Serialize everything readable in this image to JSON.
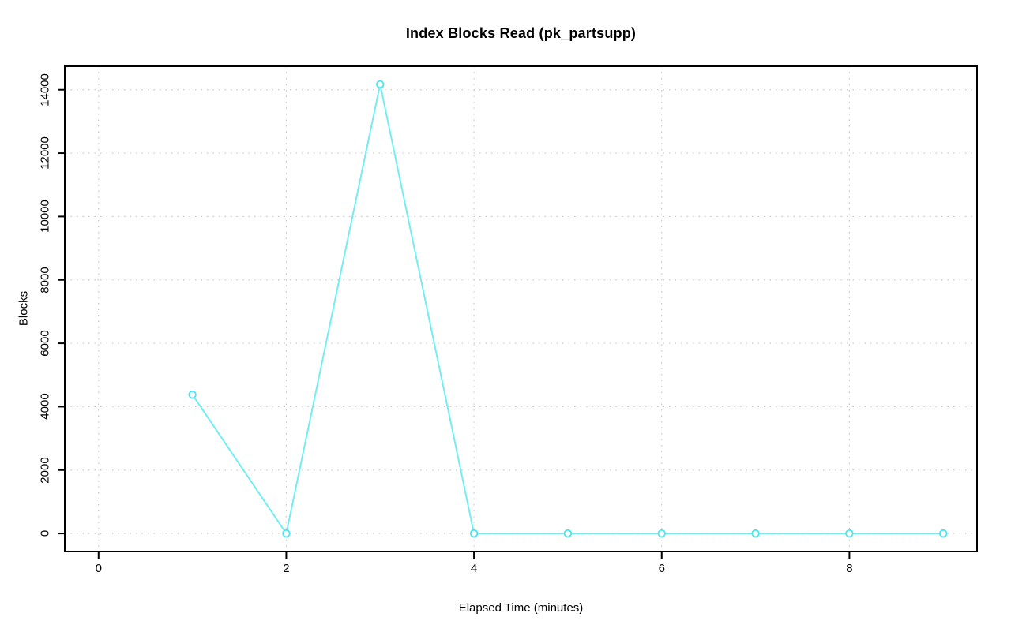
{
  "title": "Index Blocks Read (pk_partsupp)",
  "chart_data": {
    "type": "line",
    "title": "Index Blocks Read (pk_partsupp)",
    "xlabel": "Elapsed Time (minutes)",
    "ylabel": "Blocks",
    "x": [
      1,
      2,
      3,
      4,
      5,
      6,
      7,
      8,
      9
    ],
    "y": [
      4380,
      0,
      14170,
      0,
      0,
      0,
      0,
      0,
      0
    ],
    "x_ticks": [
      0,
      2,
      4,
      6,
      8
    ],
    "y_ticks": [
      0,
      2000,
      4000,
      6000,
      8000,
      10000,
      12000,
      14000
    ],
    "xlim": [
      -0.36,
      9.36
    ],
    "ylim": [
      -570,
      14740
    ],
    "grid": true,
    "grid_style": "dotted",
    "legend_position": "none",
    "marker": "open-circle",
    "colors": {
      "line": "#72EEF3",
      "marker_stroke": "#49E6EF",
      "marker_fill": "#ffffff",
      "grid": "#C9C9C9",
      "axis": "#000000",
      "text": "#000000",
      "background": "#ffffff"
    }
  }
}
